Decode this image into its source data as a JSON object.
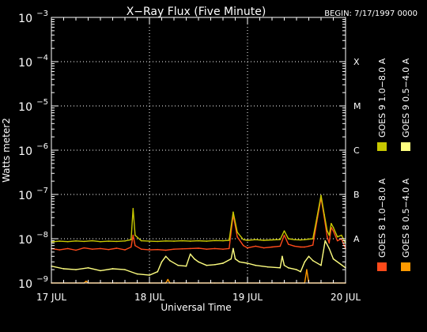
{
  "chart_data": {
    "type": "line",
    "title": "X−Ray Flux (Five Minute)",
    "begin_label": "BEGIN: 7/17/1997 0000",
    "xlabel": "Universal Time",
    "ylabel": "Watts meter2",
    "y_scale": "log",
    "ylim": [
      1e-09,
      0.001
    ],
    "xlim": [
      0,
      72
    ],
    "x_unit": "hours since 17 JUL 00:00",
    "x_ticks": [
      {
        "value": 0,
        "label": "17 JUL"
      },
      {
        "value": 24,
        "label": "18 JUL"
      },
      {
        "value": 48,
        "label": "19 JUL"
      },
      {
        "value": 72,
        "label": "20 JUL"
      }
    ],
    "y_ticks": [
      {
        "exp": -9,
        "label": "10",
        "sup": "−9"
      },
      {
        "exp": -8,
        "label": "10",
        "sup": "−8"
      },
      {
        "exp": -7,
        "label": "10",
        "sup": "−7"
      },
      {
        "exp": -6,
        "label": "10",
        "sup": "−6"
      },
      {
        "exp": -5,
        "label": "10",
        "sup": "−5"
      },
      {
        "exp": -4,
        "label": "10",
        "sup": "−4"
      },
      {
        "exp": -3,
        "label": "10",
        "sup": "−3"
      }
    ],
    "flare_classes": [
      {
        "label": "A",
        "exp": -8
      },
      {
        "label": "B",
        "exp": -7
      },
      {
        "label": "C",
        "exp": -6
      },
      {
        "label": "M",
        "exp": -5
      },
      {
        "label": "X",
        "exp": -4
      }
    ],
    "grid": "dotted horizontal at each decade, dotted vertical at day boundaries",
    "legend_placement": "right, rotated vertical",
    "series": [
      {
        "name": "GOES 8 1.0−8.0 A",
        "color": "#ff4a1a",
        "x": [
          0,
          2,
          4,
          6,
          8,
          10,
          12,
          14,
          16,
          18,
          19.5,
          20,
          20.5,
          22,
          24,
          26,
          28,
          30,
          32,
          34,
          36,
          38,
          40,
          42,
          43.5,
          44.5,
          45.5,
          47,
          48,
          50,
          52,
          54,
          56,
          57,
          58,
          59.5,
          61,
          62,
          63,
          64,
          65,
          66,
          66.8,
          67.5,
          68,
          68.5,
          69,
          70,
          71,
          72
        ],
        "y": [
          6e-09,
          5.6e-09,
          6e-09,
          5.5e-09,
          6.2e-09,
          5.8e-09,
          6e-09,
          5.7e-09,
          6.1e-09,
          5.6e-09,
          6.5e-09,
          1.2e-08,
          7e-09,
          5.8e-09,
          5.6e-09,
          5.7e-09,
          5.5e-09,
          5.8e-09,
          5.9e-09,
          6e-09,
          6.1e-09,
          5.8e-09,
          6e-09,
          5.8e-09,
          6e-09,
          3.5e-08,
          1.1e-08,
          7e-09,
          6.2e-09,
          6.8e-09,
          6.2e-09,
          6.5e-09,
          6.8e-09,
          1.2e-08,
          7.5e-09,
          6.8e-09,
          6.5e-09,
          6.5e-09,
          6.8e-09,
          7.2e-09,
          2.5e-08,
          8.5e-08,
          3e-08,
          1.1e-08,
          8e-09,
          1.8e-08,
          1.5e-08,
          9e-09,
          1e-08,
          6e-09
        ]
      },
      {
        "name": "GOES 8 0.5−4.0 A",
        "color": "#ff9a00",
        "x": [
          0,
          8,
          8.5,
          9,
          16,
          24,
          28,
          28.5,
          29,
          40,
          44,
          56,
          62,
          62.5,
          63,
          66,
          72
        ],
        "y": [
          1e-09,
          1e-09,
          1.1e-09,
          1e-09,
          1e-09,
          1e-09,
          1e-09,
          1.2e-09,
          1e-09,
          1e-09,
          1e-09,
          1e-09,
          1e-09,
          2e-09,
          1e-09,
          1e-09,
          1e-09
        ]
      },
      {
        "name": "GOES 9 1.0−8.0 A",
        "color": "#c8c800",
        "x": [
          0,
          2,
          4,
          6,
          8,
          10,
          12,
          14,
          16,
          18,
          19.5,
          20,
          20.5,
          22,
          24,
          26,
          28,
          30,
          32,
          34,
          36,
          38,
          40,
          42,
          43.5,
          44.5,
          45.5,
          47,
          48,
          50,
          52,
          54,
          56,
          57,
          58,
          59.5,
          61,
          62,
          63,
          64,
          65,
          66,
          66.8,
          67.5,
          68,
          68.5,
          69,
          70,
          71,
          72
        ],
        "y": [
          8.5e-09,
          8.8e-09,
          8.6e-09,
          8.9e-09,
          8.7e-09,
          9e-09,
          8.6e-09,
          8.8e-09,
          8.7e-09,
          8.9e-09,
          9.5e-09,
          4.8e-08,
          1.2e-08,
          9e-09,
          8.8e-09,
          8.7e-09,
          8.9e-09,
          8.8e-09,
          9e-09,
          8.8e-09,
          9e-09,
          8.8e-09,
          9.1e-09,
          9e-09,
          9.2e-09,
          4e-08,
          1.4e-08,
          9.5e-09,
          9.2e-09,
          9.5e-09,
          9.2e-09,
          9.4e-09,
          9.6e-09,
          1.5e-08,
          1e-08,
          9.5e-09,
          9.4e-09,
          9.5e-09,
          9.8e-09,
          1e-08,
          3e-08,
          9.5e-08,
          3.5e-08,
          1.5e-08,
          1.2e-08,
          2.2e-08,
          1.8e-08,
          1.1e-08,
          1.2e-08,
          8e-09
        ]
      },
      {
        "name": "GOES 9 0.5−4.0 A",
        "color": "#ffff80",
        "x": [
          0,
          3,
          6,
          9,
          12,
          15,
          18,
          21,
          24,
          26,
          27,
          28,
          29,
          31,
          33,
          34,
          35,
          36,
          38,
          40,
          42,
          44,
          44.5,
          45,
          46,
          48,
          50,
          53,
          56,
          56.5,
          57,
          58,
          60,
          61,
          62,
          63,
          64,
          66,
          67,
          68,
          69,
          72
        ],
        "y": [
          2.4e-09,
          2.1e-09,
          2e-09,
          2.2e-09,
          1.9e-09,
          2.1e-09,
          2e-09,
          1.6e-09,
          1.5e-09,
          1.8e-09,
          3e-09,
          4e-09,
          3.2e-09,
          2.5e-09,
          2.4e-09,
          4.5e-09,
          3.5e-09,
          3e-09,
          2.5e-09,
          2.6e-09,
          2.8e-09,
          3.5e-09,
          6e-09,
          3.5e-09,
          3e-09,
          2.8e-09,
          2.5e-09,
          2.3e-09,
          2.2e-09,
          4e-09,
          2.5e-09,
          2.2e-09,
          2e-09,
          1.8e-09,
          3e-09,
          4e-09,
          3.2e-09,
          2.5e-09,
          9e-09,
          6e-09,
          3.5e-09,
          2.2e-09
        ]
      }
    ]
  }
}
